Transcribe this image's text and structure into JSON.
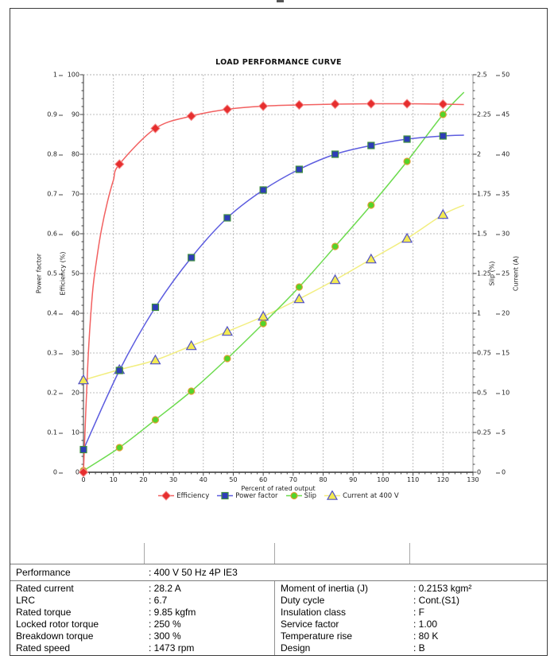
{
  "chart": {
    "title": "LOAD PERFORMANCE CURVE",
    "x_title": "Percent of rated output",
    "pf_axis_title": "Power factor",
    "eff_axis_title": "Efficiency (%)",
    "slip_axis_title": "Slip (%)",
    "current_axis_title": "Current (A)",
    "pf_ticks": [
      "1",
      "0.9",
      "0.8",
      "0.7",
      "0.6",
      "0.5",
      "0.4",
      "0.3",
      "0.2",
      "0.1",
      "0"
    ],
    "eff_ticks": [
      "100",
      "90",
      "80",
      "70",
      "60",
      "50",
      "40",
      "30",
      "20",
      "10",
      "0"
    ],
    "slip_ticks": [
      "2.5",
      "2.25",
      "2",
      "1.75",
      "1.5",
      "1.25",
      "1",
      "0.75",
      "0.5",
      "0.25",
      "0"
    ],
    "current_ticks": [
      "50",
      "45",
      "40",
      "35",
      "30",
      "25",
      "20",
      "15",
      "10",
      "5",
      "0"
    ],
    "x_ticks": [
      "0",
      "10",
      "20",
      "30",
      "40",
      "50",
      "60",
      "70",
      "80",
      "90",
      "100",
      "110",
      "120",
      "130"
    ],
    "grid_color": "#bdbdbd",
    "axis_color": "#444444"
  },
  "chart_data": {
    "type": "line",
    "title": "LOAD PERFORMANCE CURVE",
    "xlabel": "Percent of rated output",
    "x_range": [
      0,
      130
    ],
    "grid": true,
    "legend_position": "bottom",
    "x": [
      0,
      12,
      24,
      36,
      48,
      60,
      72,
      84,
      96,
      108,
      120
    ],
    "series": [
      {
        "name": "Efficiency",
        "axis": "Efficiency (%)",
        "y_range": [
          0,
          100
        ],
        "values": [
          0,
          77.5,
          86.5,
          89.6,
          91.3,
          92.1,
          92.4,
          92.6,
          92.7,
          92.7,
          92.6
        ],
        "curve_prefix": [
          [
            1.5,
            28
          ],
          [
            3,
            45
          ],
          [
            4.5,
            54
          ],
          [
            6,
            61
          ],
          [
            8,
            68
          ],
          [
            10,
            73.5
          ]
        ],
        "curve_tail": [
          [
            127,
            92.5
          ]
        ],
        "line_color": "#f26060",
        "marker": "diamond",
        "marker_fill": "#e62e2e",
        "marker_stroke": "#f58a8a",
        "marker_size": 11
      },
      {
        "name": "Power factor",
        "axis": "Power factor",
        "y_range": [
          0,
          1
        ],
        "values": [
          0.057,
          0.256,
          0.415,
          0.54,
          0.64,
          0.71,
          0.762,
          0.8,
          0.822,
          0.838,
          0.846
        ],
        "curve_prefix": [],
        "curve_tail": [
          [
            127,
            0.848
          ]
        ],
        "line_color": "#5c5cdf",
        "marker": "square",
        "marker_fill": "#2e3db8",
        "marker_stroke": "#3f8f3f",
        "marker_size": 8
      },
      {
        "name": "Slip",
        "axis": "Slip (%)",
        "y_range": [
          0,
          2.5
        ],
        "values": [
          0.01,
          0.155,
          0.33,
          0.51,
          0.715,
          0.935,
          1.165,
          1.42,
          1.68,
          1.955,
          2.25
        ],
        "curve_prefix": [],
        "curve_tail": [
          [
            127,
            2.39
          ]
        ],
        "line_color": "#6cdb4e",
        "marker": "circle",
        "marker_fill": "#53d42a",
        "marker_stroke": "#dd9f33",
        "marker_size": 8
      },
      {
        "name": "Current at 400 V",
        "axis": "Current (A)",
        "y_range": [
          0,
          50
        ],
        "values": [
          11.6,
          12.9,
          14.1,
          15.9,
          17.7,
          19.6,
          21.8,
          24.2,
          26.8,
          29.4,
          32.4
        ],
        "curve_prefix": [],
        "curve_tail": [
          [
            127,
            33.6
          ]
        ],
        "line_color": "#f2ee7f",
        "marker": "triangle",
        "marker_fill": "#f3ea52",
        "marker_stroke": "#5050c8",
        "marker_size": 11
      }
    ]
  },
  "table": {
    "performance_label": "Performance",
    "performance_value": ": 400 V 50 Hz 4P IE3",
    "left_rows": [
      {
        "label": "Rated current",
        "value": ": 28.2 A"
      },
      {
        "label": "LRC",
        "value": ": 6.7"
      },
      {
        "label": "Rated torque",
        "value": ": 9.85 kgfm"
      },
      {
        "label": "Locked rotor torque",
        "value": ": 250 %"
      },
      {
        "label": "Breakdown torque",
        "value": ": 300 %"
      },
      {
        "label": "Rated speed",
        "value": ": 1473 rpm"
      }
    ],
    "right_rows": [
      {
        "label": "Moment of inertia (J)",
        "value": ": 0.2153 kgm²"
      },
      {
        "label": "Duty cycle",
        "value": ": Cont.(S1)"
      },
      {
        "label": "Insulation class",
        "value": ": F"
      },
      {
        "label": "Service factor",
        "value": ": 1.00"
      },
      {
        "label": "Temperature rise",
        "value": ": 80 K"
      },
      {
        "label": "Design",
        "value": ": B"
      }
    ]
  }
}
